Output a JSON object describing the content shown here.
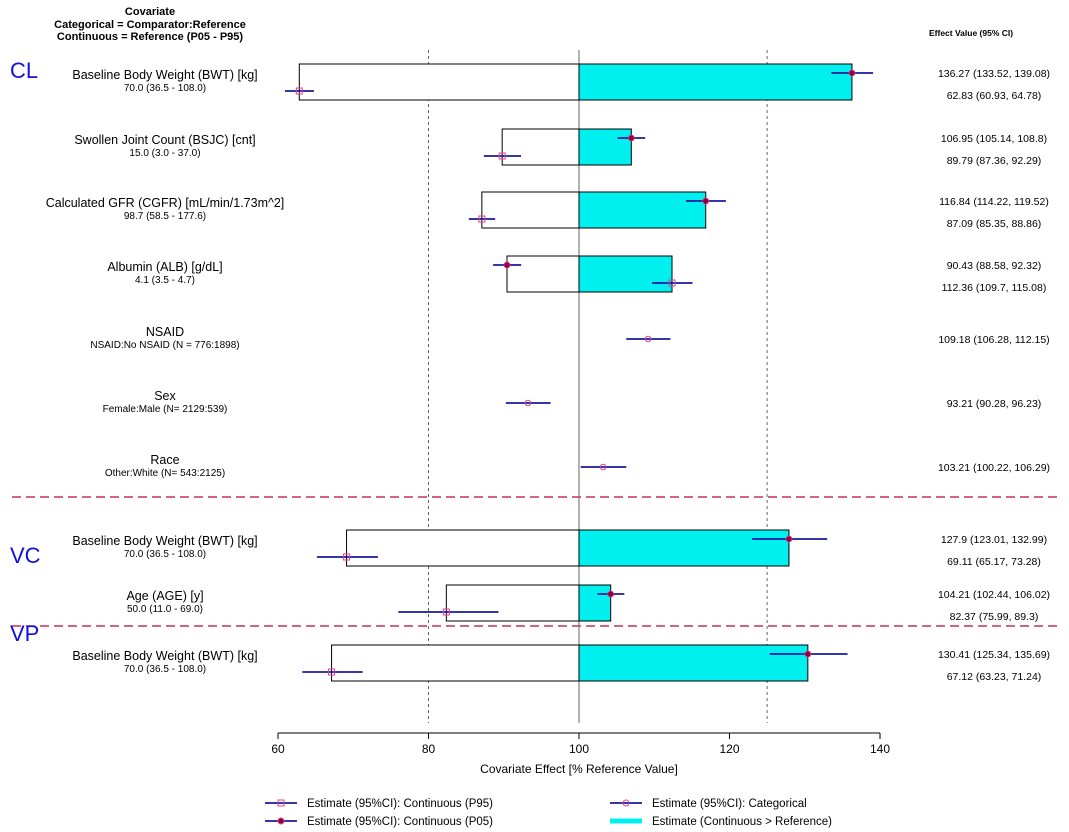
{
  "header": {
    "covariate_lines": [
      "Covariate",
      "Categorical = Comparator:Reference",
      "Continuous = Reference (P05 - P95)"
    ],
    "effect_col": "Effect Value (95% CI)"
  },
  "chart_data": {
    "type": "forest",
    "xlabel": "Covariate Effect [% Reference Value]",
    "xlim": [
      60,
      140
    ],
    "xticks": [
      60,
      80,
      100,
      120,
      140
    ],
    "reference_line": 100,
    "dashed_lines": [
      80,
      125
    ],
    "groups": [
      {
        "label": "CL",
        "rows": [
          {
            "name": "Baseline Body Weight (BWT) [kg]",
            "sub": "70.0 (36.5 - 108.0)",
            "kind": "continuous",
            "p95": {
              "est": 136.27,
              "lo": 133.52,
              "hi": 139.08,
              "text": "136.27 (133.52, 139.08)"
            },
            "p05": {
              "est": 62.83,
              "lo": 60.93,
              "hi": 64.78,
              "text": "62.83 (60.93, 64.78)"
            }
          },
          {
            "name": "Swollen Joint Count (BSJC) [cnt]",
            "sub": "15.0 (3.0 - 37.0)",
            "kind": "continuous",
            "p95": {
              "est": 106.95,
              "lo": 105.14,
              "hi": 108.8,
              "text": "106.95 (105.14, 108.8)"
            },
            "p05": {
              "est": 89.79,
              "lo": 87.36,
              "hi": 92.29,
              "text": "89.79 (87.36, 92.29)"
            }
          },
          {
            "name": "Calculated GFR (CGFR) [mL/min/1.73m^2]",
            "sub": "98.7 (58.5 - 177.6)",
            "kind": "continuous",
            "p95": {
              "est": 116.84,
              "lo": 114.22,
              "hi": 119.52,
              "text": "116.84 (114.22, 119.52)"
            },
            "p05": {
              "est": 87.09,
              "lo": 85.35,
              "hi": 88.86,
              "text": "87.09 (85.35, 88.86)"
            }
          },
          {
            "name": "Albumin (ALB) [g/dL]",
            "sub": "4.1 (3.5 - 4.7)",
            "kind": "continuous",
            "p95": {
              "est": 90.43,
              "lo": 88.58,
              "hi": 92.32,
              "text": "90.43 (88.58, 92.32)"
            },
            "p05": {
              "est": 112.36,
              "lo": 109.7,
              "hi": 115.08,
              "text": "112.36 (109.7, 115.08)"
            }
          },
          {
            "name": "NSAID",
            "sub": "NSAID:No NSAID (N = 776:1898)",
            "kind": "categorical",
            "cat": {
              "est": 109.18,
              "lo": 106.28,
              "hi": 112.15,
              "text": "109.18 (106.28, 112.15)"
            }
          },
          {
            "name": "Sex",
            "sub": "Female:Male (N= 2129:539)",
            "kind": "categorical",
            "cat": {
              "est": 93.21,
              "lo": 90.28,
              "hi": 96.23,
              "text": "93.21 (90.28, 96.23)"
            }
          },
          {
            "name": "Race",
            "sub": "Other:White (N= 543:2125)",
            "kind": "categorical",
            "cat": {
              "est": 103.21,
              "lo": 100.22,
              "hi": 106.29,
              "text": "103.21 (100.22, 106.29)"
            }
          }
        ]
      },
      {
        "label": "VC",
        "rows": [
          {
            "name": "Baseline Body Weight (BWT) [kg]",
            "sub": "70.0 (36.5 - 108.0)",
            "kind": "continuous",
            "p95": {
              "est": 127.9,
              "lo": 123.01,
              "hi": 132.99,
              "text": "127.9 (123.01, 132.99)"
            },
            "p05": {
              "est": 69.11,
              "lo": 65.17,
              "hi": 73.28,
              "text": "69.11 (65.17, 73.28)"
            }
          },
          {
            "name": "Age (AGE) [y]",
            "sub": "50.0 (11.0 - 69.0)",
            "kind": "continuous",
            "p95": {
              "est": 104.21,
              "lo": 102.44,
              "hi": 106.02,
              "text": "104.21 (102.44, 106.02)"
            },
            "p05": {
              "est": 82.37,
              "lo": 75.99,
              "hi": 89.3,
              "text": "82.37 (75.99, 89.3)"
            }
          }
        ]
      },
      {
        "label": "VP",
        "rows": [
          {
            "name": "Baseline Body Weight (BWT) [kg]",
            "sub": "70.0 (36.5 - 108.0)",
            "kind": "continuous",
            "p95": {
              "est": 130.41,
              "lo": 125.34,
              "hi": 135.69,
              "text": "130.41 (125.34, 135.69)"
            },
            "p05": {
              "est": 67.12,
              "lo": 63.23,
              "hi": 71.24,
              "text": "67.12 (63.23, 71.24)"
            }
          }
        ]
      }
    ],
    "legend": [
      {
        "label": "Estimate (95%CI): Continuous (P95)",
        "symbol": "p95"
      },
      {
        "label": "Estimate (95%CI): Categorical",
        "symbol": "cat"
      },
      {
        "label": "Estimate (95%CI): Continuous (P05)",
        "symbol": "p05"
      },
      {
        "label": "Estimate (Continuous > Reference)",
        "symbol": "fill"
      }
    ],
    "colors": {
      "fill": "#00f0f0",
      "ci": "#1a1a9a",
      "p05_point": "#8b0038",
      "marker": "#e0409a",
      "group_label": "#1010e0",
      "separator": "#c83050"
    }
  }
}
